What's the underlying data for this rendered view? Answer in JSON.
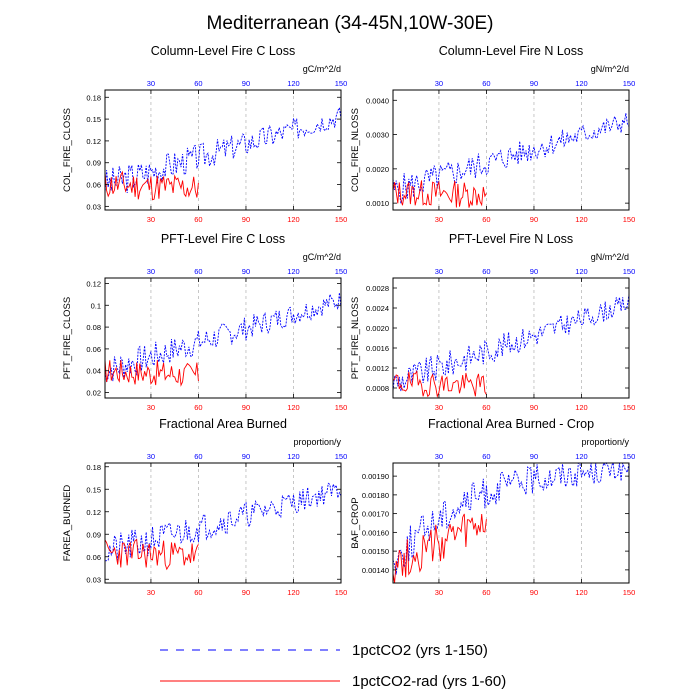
{
  "figure": {
    "title": "Mediterranean (34-45N,10W-30E)"
  },
  "legend": [
    {
      "label": "1pctCO2 (yrs 1-150)",
      "color": "#0000ff",
      "style": "dashed"
    },
    {
      "label": "1pctCO2-rad (yrs 1-60)",
      "color": "#ff0000",
      "style": "solid"
    }
  ],
  "colors": {
    "blue_series": "#0000ff",
    "red_series": "#ff0000",
    "top_axis": "#0000ff",
    "bottom_axis": "#ff0000"
  },
  "chart_data": [
    {
      "type": "line",
      "title": "Column-Level Fire C Loss",
      "units": "gC/m^2/d",
      "ylabel": "COL_FIRE_CLOSS",
      "xlim": [
        1,
        150
      ],
      "ylim": [
        0.025,
        0.19
      ],
      "xticks_top": [
        30,
        60,
        90,
        120,
        150
      ],
      "xticks_bottom": [
        30,
        60,
        90,
        120,
        150
      ],
      "yticks": [
        0.03,
        0.06,
        0.09,
        0.12,
        0.15,
        0.18
      ],
      "ytick_labels": [
        "0.03",
        "0.06",
        "0.09",
        "0.12",
        "0.15",
        "0.18"
      ],
      "grid_x": [
        30,
        60,
        90,
        120
      ],
      "series": [
        {
          "name": "1pctCO2 (yrs 1-150)",
          "start": 0.06,
          "end": 0.155,
          "amp": 0.022,
          "seed": 3,
          "years": 150
        },
        {
          "name": "1pctCO2-rad (yrs 1-60)",
          "start": 0.06,
          "end": 0.055,
          "amp": 0.02,
          "seed": 11,
          "years": 60
        }
      ]
    },
    {
      "type": "line",
      "title": "Column-Level Fire N Loss",
      "units": "gN/m^2/d",
      "ylabel": "COL_FIRE_NLOSS",
      "xlim": [
        1,
        150
      ],
      "ylim": [
        0.0008,
        0.0043
      ],
      "xticks_top": [
        30,
        60,
        90,
        120,
        150
      ],
      "xticks_bottom": [
        30,
        60,
        90,
        120,
        150
      ],
      "yticks": [
        0.001,
        0.002,
        0.003,
        0.004
      ],
      "ytick_labels": [
        "0.0010",
        "0.0020",
        "0.0030",
        "0.0040"
      ],
      "grid_x": [
        30,
        60,
        90,
        120
      ],
      "series": [
        {
          "name": "1pctCO2 (yrs 1-150)",
          "start": 0.00135,
          "end": 0.0034,
          "amp": 0.00045,
          "seed": 5,
          "years": 150
        },
        {
          "name": "1pctCO2-rad (yrs 1-60)",
          "start": 0.0013,
          "end": 0.00125,
          "amp": 0.0004,
          "seed": 13,
          "years": 60
        }
      ]
    },
    {
      "type": "line",
      "title": "PFT-Level Fire C Loss",
      "units": "gC/m^2/d",
      "ylabel": "PFT_FIRE_CLOSS",
      "xlim": [
        1,
        150
      ],
      "ylim": [
        0.015,
        0.125
      ],
      "xticks_top": [
        30,
        60,
        90,
        120,
        150
      ],
      "xticks_bottom": [
        30,
        60,
        90,
        120,
        150
      ],
      "yticks": [
        0.02,
        0.04,
        0.06,
        0.08,
        0.1,
        0.12
      ],
      "ytick_labels": [
        "0.02",
        "0.04",
        "0.06",
        "0.08",
        "0.1",
        "0.12"
      ],
      "grid_x": [
        30,
        60,
        90,
        120
      ],
      "series": [
        {
          "name": "1pctCO2 (yrs 1-150)",
          "start": 0.04,
          "end": 0.105,
          "amp": 0.014,
          "seed": 7,
          "years": 150
        },
        {
          "name": "1pctCO2-rad (yrs 1-60)",
          "start": 0.04,
          "end": 0.036,
          "amp": 0.012,
          "seed": 17,
          "years": 60
        }
      ]
    },
    {
      "type": "line",
      "title": "PFT-Level Fire N Loss",
      "units": "gN/m^2/d",
      "ylabel": "PFT_FIRE_NLOSS",
      "xlim": [
        1,
        150
      ],
      "ylim": [
        0.0006,
        0.003
      ],
      "xticks_top": [
        30,
        60,
        90,
        120,
        150
      ],
      "xticks_bottom": [
        30,
        60,
        90,
        120,
        150
      ],
      "yticks": [
        0.0008,
        0.0012,
        0.0016,
        0.002,
        0.0024,
        0.0028
      ],
      "ytick_labels": [
        "0.0008",
        "0.0012",
        "0.0016",
        "0.0020",
        "0.0024",
        "0.0028"
      ],
      "grid_x": [
        30,
        60,
        90,
        120
      ],
      "series": [
        {
          "name": "1pctCO2 (yrs 1-150)",
          "start": 0.0009,
          "end": 0.0025,
          "amp": 0.0003,
          "seed": 9,
          "years": 150
        },
        {
          "name": "1pctCO2-rad (yrs 1-60)",
          "start": 0.0009,
          "end": 0.00085,
          "amp": 0.00025,
          "seed": 19,
          "years": 60
        }
      ]
    },
    {
      "type": "line",
      "title": "Fractional Area Burned",
      "units": "proportion/y",
      "ylabel": "FAREA_BURNED",
      "xlim": [
        1,
        150
      ],
      "ylim": [
        0.025,
        0.185
      ],
      "xticks_top": [
        30,
        60,
        90,
        120,
        150
      ],
      "xticks_bottom": [
        30,
        60,
        90,
        120,
        150
      ],
      "yticks": [
        0.03,
        0.06,
        0.09,
        0.12,
        0.15,
        0.18
      ],
      "ytick_labels": [
        "0.03",
        "0.06",
        "0.09",
        "0.12",
        "0.15",
        "0.18"
      ],
      "grid_x": [
        30,
        60,
        90,
        120
      ],
      "series": [
        {
          "name": "1pctCO2 (yrs 1-150)",
          "start": 0.065,
          "end": 0.15,
          "amp": 0.022,
          "seed": 21,
          "years": 150
        },
        {
          "name": "1pctCO2-rad (yrs 1-60)",
          "start": 0.065,
          "end": 0.062,
          "amp": 0.02,
          "seed": 23,
          "years": 60
        }
      ]
    },
    {
      "type": "line",
      "title": "Fractional Area Burned - Crop",
      "units": "proportion/y",
      "ylabel": "BAF_CROP",
      "xlim": [
        1,
        150
      ],
      "ylim": [
        0.00133,
        0.00197
      ],
      "xticks_top": [
        30,
        60,
        90,
        120,
        150
      ],
      "xticks_bottom": [
        30,
        60,
        90,
        120,
        150
      ],
      "yticks": [
        0.0014,
        0.0015,
        0.0016,
        0.0017,
        0.0018,
        0.0019
      ],
      "ytick_labels": [
        "0.00140",
        "0.00150",
        "0.00160",
        "0.00170",
        "0.00180",
        "0.00190"
      ],
      "grid_x": [
        30,
        60,
        90,
        120
      ],
      "series": [
        {
          "name": "1pctCO2 (yrs 1-150)",
          "start": 0.00143,
          "end": 0.00194,
          "amp": 0.0001,
          "seed": 25,
          "years": 150,
          "saturate": true
        },
        {
          "name": "1pctCO2-rad (yrs 1-60)",
          "start": 0.00143,
          "end": 0.00165,
          "amp": 0.00011,
          "seed": 27,
          "years": 60
        }
      ]
    }
  ]
}
